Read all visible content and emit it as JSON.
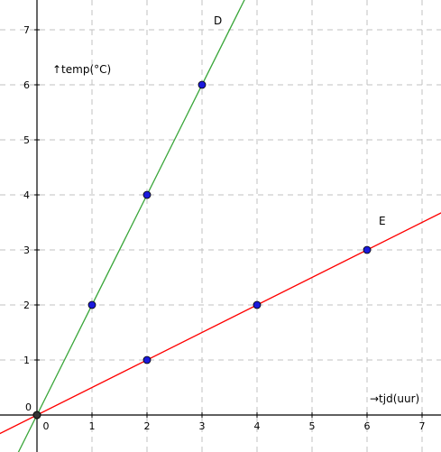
{
  "chart_data": {
    "type": "line",
    "xlabel": "→tjd(uur)",
    "ylabel": "↑temp(°C)",
    "origin_label": "0",
    "xlim": [
      -0.55,
      7.3
    ],
    "ylim": [
      -0.6,
      7.4
    ],
    "grid": true,
    "x_ticks": [
      0,
      1,
      2,
      3,
      4,
      5,
      6,
      7
    ],
    "y_ticks": [
      1,
      2,
      3,
      4,
      5,
      6,
      7
    ],
    "x_tick_labels": [
      "0",
      "1",
      "2",
      "3",
      "4",
      "5",
      "6",
      "7"
    ],
    "y_tick_labels": [
      "1",
      "2",
      "3",
      "4",
      "5",
      "6",
      "7"
    ],
    "series": [
      {
        "name": "D",
        "color": "#3aa63a",
        "slope": 2,
        "points": [
          {
            "x": 0,
            "y": 0
          },
          {
            "x": 1,
            "y": 2
          },
          {
            "x": 2,
            "y": 4
          },
          {
            "x": 3,
            "y": 6
          }
        ]
      },
      {
        "name": "E",
        "color": "#ff0000",
        "slope": 0.5,
        "points": [
          {
            "x": 0,
            "y": 0
          },
          {
            "x": 2,
            "y": 1
          },
          {
            "x": 4,
            "y": 2
          },
          {
            "x": 6,
            "y": 3
          }
        ]
      }
    ],
    "point_color": "#1a1adb",
    "origin_point_color": "#333333"
  }
}
